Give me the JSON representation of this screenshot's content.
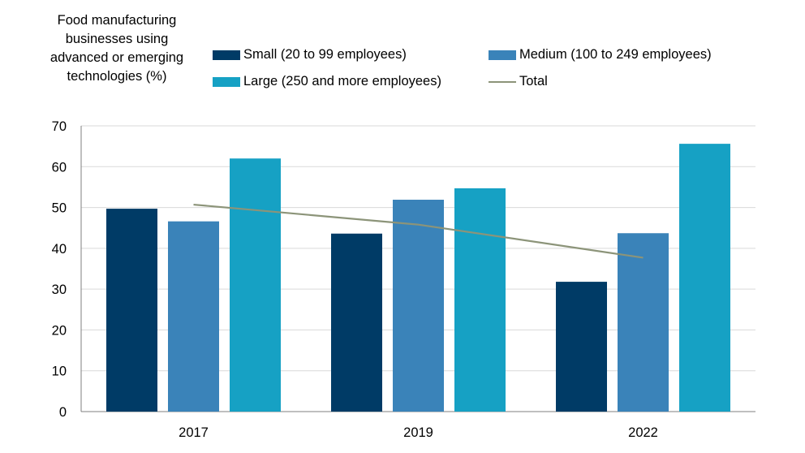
{
  "chart_data": {
    "type": "bar",
    "ylabel": "Food manufacturing businesses using advanced or emerging technologies (%)",
    "categories": [
      "2017",
      "2019",
      "2022"
    ],
    "ylim": [
      0,
      70
    ],
    "yticks": [
      "0",
      "10",
      "20",
      "30",
      "40",
      "50",
      "60",
      "70"
    ],
    "grid": true,
    "legend_position": "top",
    "series": [
      {
        "name": "Small (20 to 99 employees)",
        "type": "bar",
        "color": "#003b66",
        "values": [
          49.7,
          43.6,
          31.8
        ]
      },
      {
        "name": "Medium (100 to 249 employees)",
        "type": "bar",
        "color": "#3a83b9",
        "values": [
          46.6,
          51.9,
          43.7
        ]
      },
      {
        "name": "Large (250 and more employees)",
        "type": "bar",
        "color": "#16a1c4",
        "values": [
          62.0,
          54.7,
          65.6
        ]
      },
      {
        "name": "Total",
        "type": "line",
        "color": "#8c9479",
        "values": [
          50.7,
          45.8,
          37.7
        ]
      }
    ]
  }
}
